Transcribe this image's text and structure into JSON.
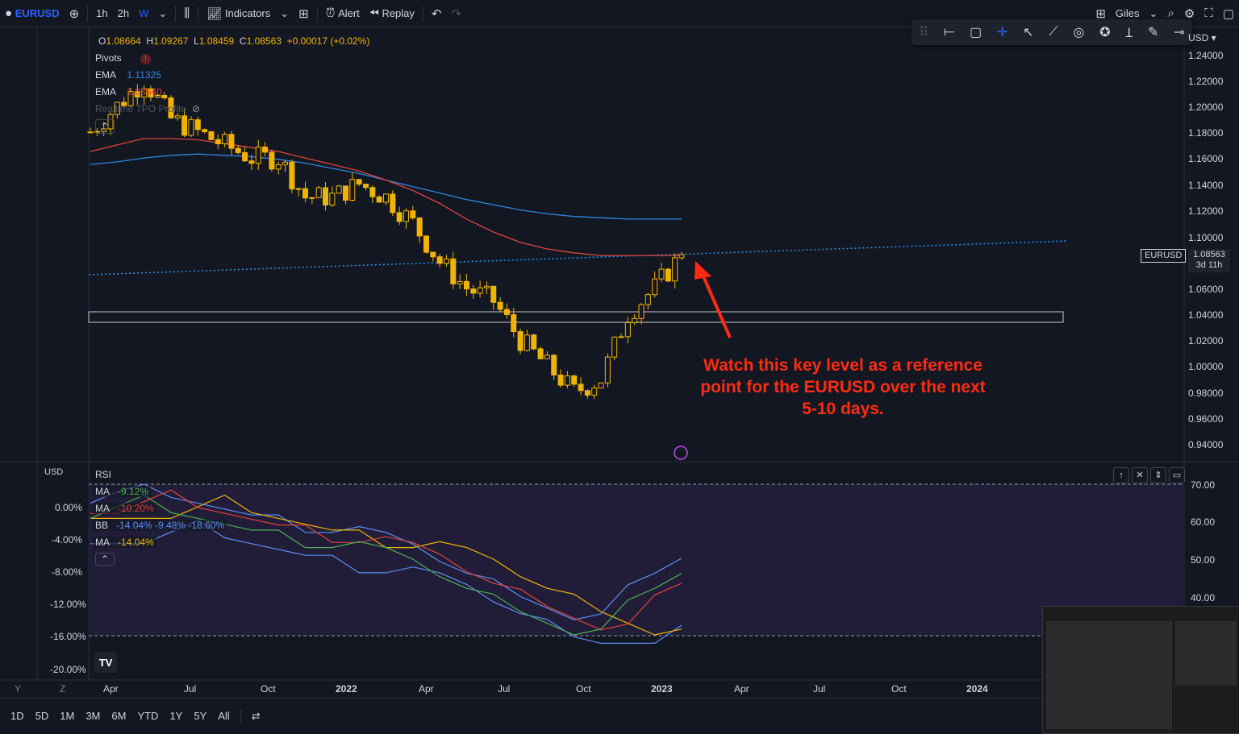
{
  "toolbar": {
    "symbol": "EURUSD",
    "intervals": [
      "1h",
      "2h",
      "W"
    ],
    "indicators_label": "Indicators",
    "alert_label": "Alert",
    "replay_label": "Replay",
    "user_label": "Giles"
  },
  "legend": {
    "ohlc": {
      "o_label": "O",
      "o": "1.08664",
      "h_label": "H",
      "h": "1.09267",
      "l_label": "L",
      "l": "1.08459",
      "c_label": "C",
      "c": "1.08563",
      "change": "+0.00017 (+0.02%)"
    },
    "pivots_label": "Pivots",
    "ema1_label": "EMA",
    "ema1_value": "1.11325",
    "ema2_label": "EMA",
    "ema2_value": "1.08540",
    "tpo_label": "Realtime TPO Profile"
  },
  "price_axis": {
    "currency": "USD",
    "ticks": [
      "1.24000",
      "1.22000",
      "1.20000",
      "1.18000",
      "1.16000",
      "1.14000",
      "1.12000",
      "1.10000",
      "1.06000",
      "1.04000",
      "1.02000",
      "1.00000",
      "0.98000",
      "0.96000",
      "0.94000"
    ],
    "current_symbol_tag": "EURUSD",
    "current_price": "1.08563",
    "countdown": "3d 11h"
  },
  "rsi_pane": {
    "title": "RSI",
    "left_currency": "USD",
    "ma1_label": "MA",
    "ma1_value": "-9.12%",
    "ma2_label": "MA",
    "ma2_value": "-10.20%",
    "bb_label": "BB",
    "bb_values": "-14.04%  -9.48%  -18.60%",
    "ma3_label": "MA",
    "ma3_value": "-14.04%",
    "left_ticks": [
      "0.00%",
      "-4.00%",
      "-8.00%",
      "-12.00%",
      "-16.00%",
      "-20.00%"
    ],
    "right_ticks": [
      "70.00",
      "60.00",
      "50.00",
      "40.00"
    ]
  },
  "time_axis": {
    "labels": [
      "Apr",
      "Jul",
      "Oct",
      "2022",
      "Apr",
      "Jul",
      "Oct",
      "2023",
      "Apr",
      "Jul",
      "Oct",
      "2024"
    ],
    "y_label": "Y",
    "z_label": "Z"
  },
  "annotation": {
    "line1": "Watch this key level as a reference",
    "line2": "point for the EURUSD over the next",
    "line3": "5-10 days."
  },
  "range_buttons": [
    "1D",
    "5D",
    "1M",
    "3M",
    "6M",
    "YTD",
    "1Y",
    "5Y",
    "All"
  ],
  "colors": {
    "background": "#131722",
    "candle": "#f0b400",
    "ema_blue": "#2e86de",
    "ema_red": "#e0423a",
    "trendline": "#2196f3",
    "annotation": "#ff2b12",
    "rsi_bg": "#251f3d"
  },
  "chart_data": {
    "type": "candlestick",
    "title": "",
    "interval": "W",
    "x": [
      "2021-03",
      "2021-04",
      "2021-05",
      "2021-06",
      "2021-07",
      "2021-08",
      "2021-09",
      "2021-10",
      "2021-11",
      "2021-12",
      "2022-01",
      "2022-02",
      "2022-03",
      "2022-04",
      "2022-05",
      "2022-06",
      "2022-07",
      "2022-08",
      "2022-09",
      "2022-10",
      "2022-11",
      "2022-12",
      "2023-01"
    ],
    "close": [
      1.18,
      1.2,
      1.22,
      1.19,
      1.18,
      1.17,
      1.16,
      1.16,
      1.13,
      1.13,
      1.14,
      1.13,
      1.11,
      1.08,
      1.06,
      1.05,
      1.02,
      1.0,
      0.98,
      0.99,
      1.04,
      1.06,
      1.0856
    ],
    "ema_long": [
      1.155,
      1.157,
      1.16,
      1.162,
      1.163,
      1.162,
      1.161,
      1.159,
      1.156,
      1.152,
      1.148,
      1.143,
      1.138,
      1.133,
      1.128,
      1.124,
      1.12,
      1.117,
      1.115,
      1.114,
      1.113,
      1.113,
      1.113
    ],
    "ema_short": [
      1.165,
      1.17,
      1.175,
      1.175,
      1.174,
      1.171,
      1.168,
      1.165,
      1.16,
      1.155,
      1.15,
      1.143,
      1.135,
      1.125,
      1.113,
      1.103,
      1.095,
      1.09,
      1.087,
      1.085,
      1.085,
      1.085,
      1.085
    ],
    "ylim": [
      0.93,
      1.25
    ]
  }
}
